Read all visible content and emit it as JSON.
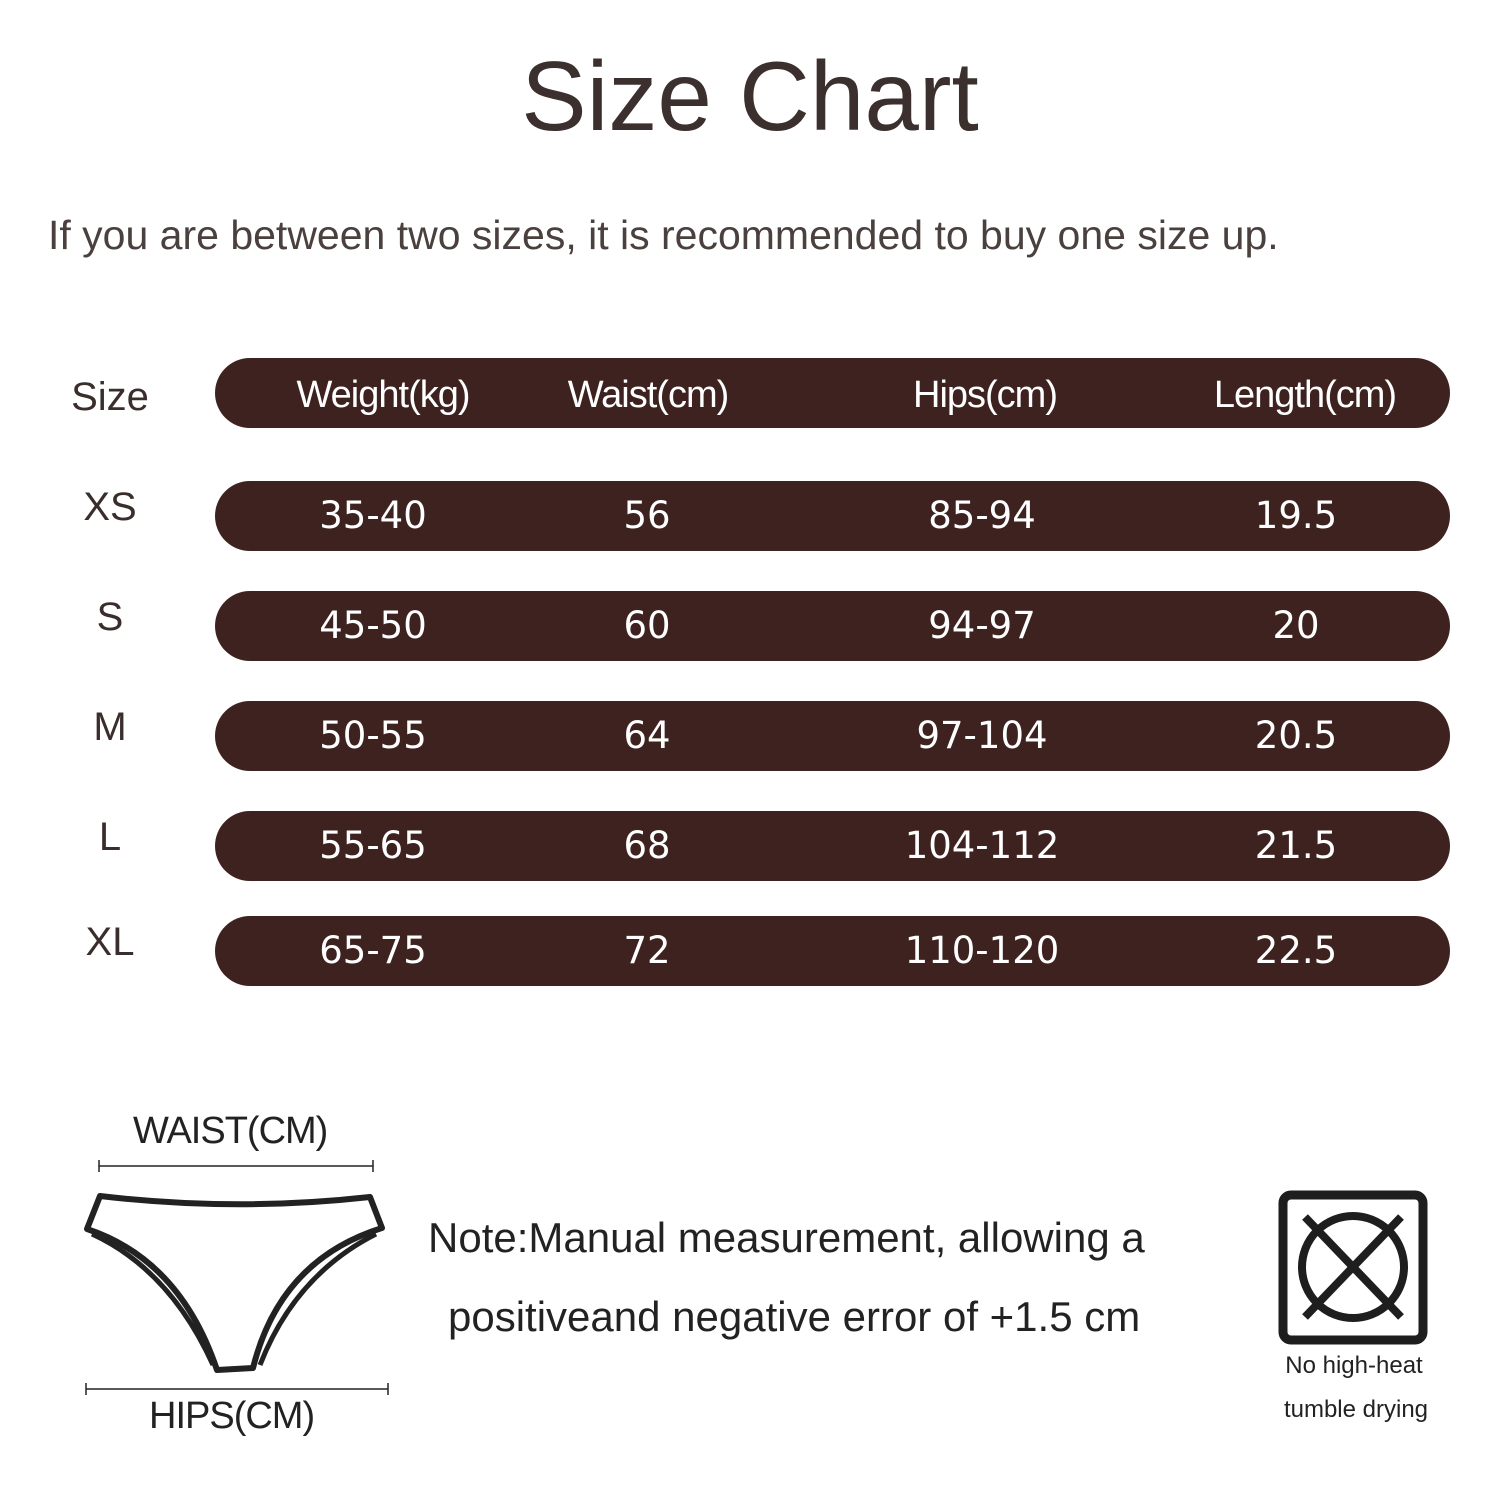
{
  "title": "Size Chart",
  "subtitle": "If you are between two sizes, it is recommended to buy one size up.",
  "table": {
    "size_header": "Size",
    "columns": [
      "Weight(kg)",
      "Waist(cm)",
      "Hips(cm)",
      "Length(cm)"
    ],
    "rows": [
      {
        "size": "XS",
        "values": [
          "35-40",
          "56",
          "85-94",
          "19.5"
        ]
      },
      {
        "size": "S",
        "values": [
          "45-50",
          "60",
          "94-97",
          "20"
        ]
      },
      {
        "size": "M",
        "values": [
          "50-55",
          "64",
          "97-104",
          "20.5"
        ]
      },
      {
        "size": "L",
        "values": [
          "55-65",
          "68",
          "104-112",
          "21.5"
        ]
      },
      {
        "size": "XL",
        "values": [
          "65-75",
          "72",
          "110-120",
          "22.5"
        ]
      }
    ]
  },
  "diagram": {
    "waist_label": "WAIST(CM)",
    "hips_label": "HIPS(CM)"
  },
  "note": {
    "line1": "Note:Manual measurement, allowing a",
    "line2": "positiveand negative error of +1.5 cm"
  },
  "care": {
    "icon": "no-tumble-dry-icon",
    "line1": "No high-heat",
    "line2": "tumble drying"
  },
  "colors": {
    "pill": "#3d2220",
    "text": "#3a2e2c"
  }
}
